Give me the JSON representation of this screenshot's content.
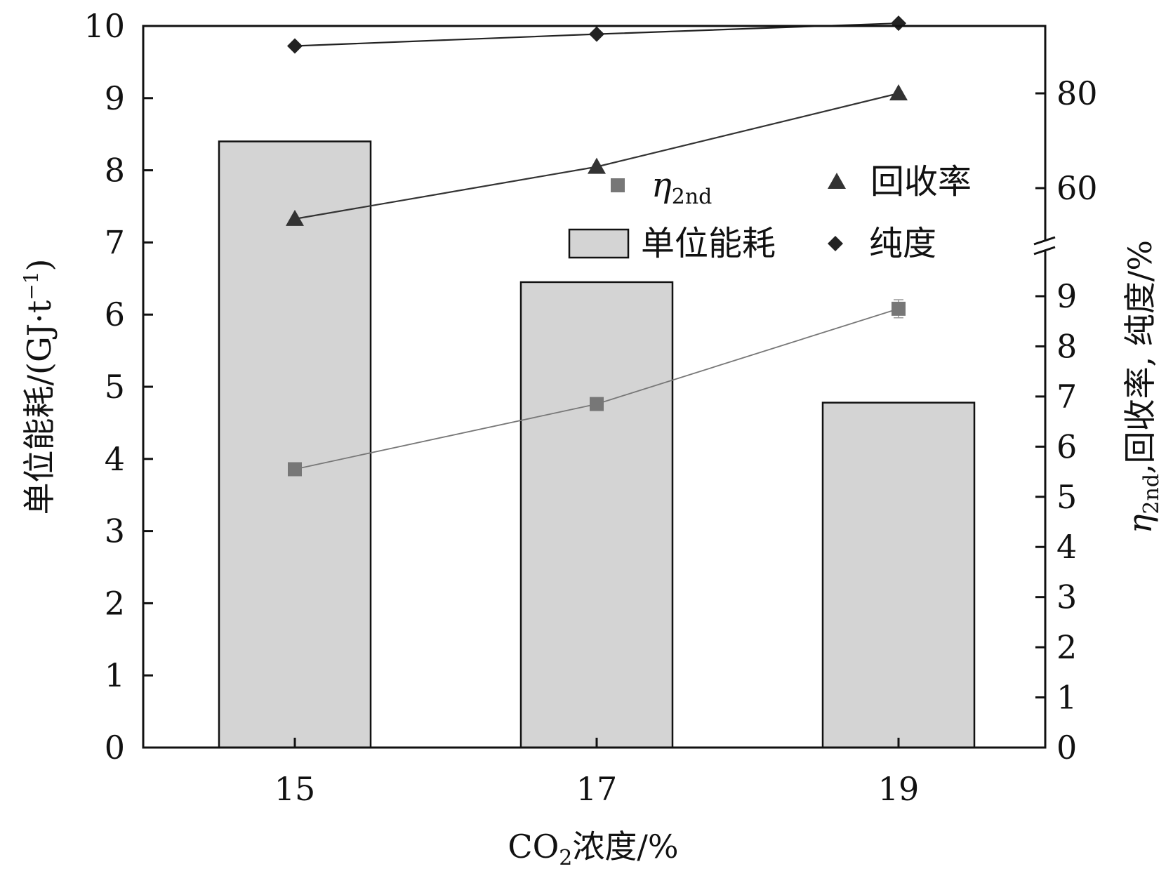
{
  "chart_data": {
    "type": "bar",
    "categories": [
      "15",
      "17",
      "19"
    ],
    "x_axis": {
      "label_main": "CO",
      "label_sub": "2",
      "label_rest": "浓度/%"
    },
    "left_axis": {
      "label_main": "单位能耗/(GJ·t",
      "label_sup": "−1",
      "label_end": ")",
      "ylim": [
        0,
        10
      ],
      "ticks": [
        "0",
        "1",
        "2",
        "3",
        "4",
        "5",
        "6",
        "7",
        "8",
        "9",
        "10"
      ]
    },
    "right_axis": {
      "label_main": "η",
      "label_sub": "2nd",
      "label_rest": ",回收率, 纯度/%",
      "lower_ylim": [
        0,
        9
      ],
      "lower_ticks": [
        "0",
        "1",
        "2",
        "3",
        "4",
        "5",
        "6",
        "7",
        "8",
        "9"
      ],
      "upper_ylim": [
        50,
        95
      ],
      "upper_ticks": [
        "60",
        "80"
      ],
      "axis_break": true
    },
    "series": [
      {
        "name": "单位能耗",
        "kind": "bar",
        "axis": "left",
        "values": [
          8.4,
          6.45,
          4.78
        ],
        "color": "#d4d4d4"
      },
      {
        "name": "回收率",
        "kind": "line",
        "marker": "triangle",
        "axis": "right-upper",
        "values": [
          53.5,
          64.5,
          80
        ],
        "color": "#333333"
      },
      {
        "name": "纯度",
        "kind": "line",
        "marker": "diamond",
        "axis": "right-upper",
        "values": [
          90,
          92.5,
          94.8
        ],
        "color": "#222222"
      },
      {
        "name": "η2nd",
        "kind": "line",
        "marker": "square",
        "axis": "right-lower",
        "values": [
          5.55,
          6.85,
          8.75
        ],
        "error": [
          0.05,
          0.1,
          0.18
        ],
        "color": "#777777"
      }
    ],
    "legend": {
      "position": "top-right",
      "items": [
        {
          "series": "η2nd",
          "main": "η",
          "sub": "2nd"
        },
        {
          "series": "回收率",
          "main": "回收率",
          "sub": ""
        },
        {
          "series": "单位能耗",
          "main": "单位能耗",
          "sub": ""
        },
        {
          "series": "纯度",
          "main": "纯度",
          "sub": ""
        }
      ]
    }
  }
}
